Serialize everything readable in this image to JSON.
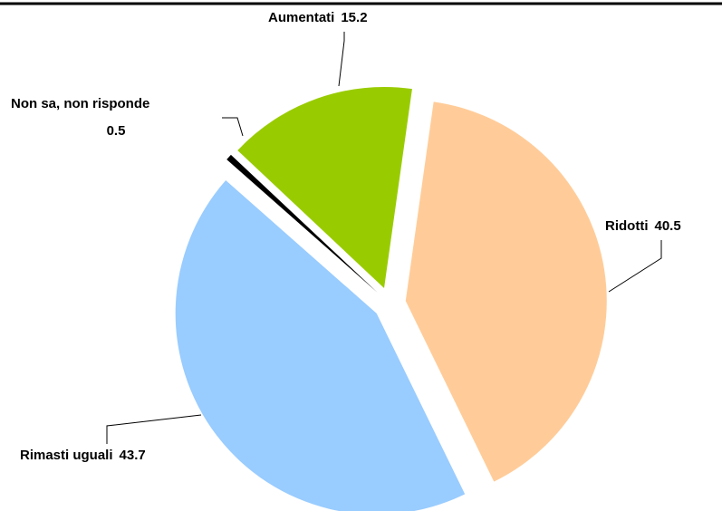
{
  "chart_data": {
    "type": "pie",
    "categories": [
      "Ridotti",
      "Rimasti uguali",
      "Non sa, non risponde",
      "Aumentati"
    ],
    "values": [
      40.5,
      43.7,
      0.5,
      15.2
    ],
    "colors": [
      "#ffcc99",
      "#99ccff",
      "#000000",
      "#99cc00"
    ]
  }
}
